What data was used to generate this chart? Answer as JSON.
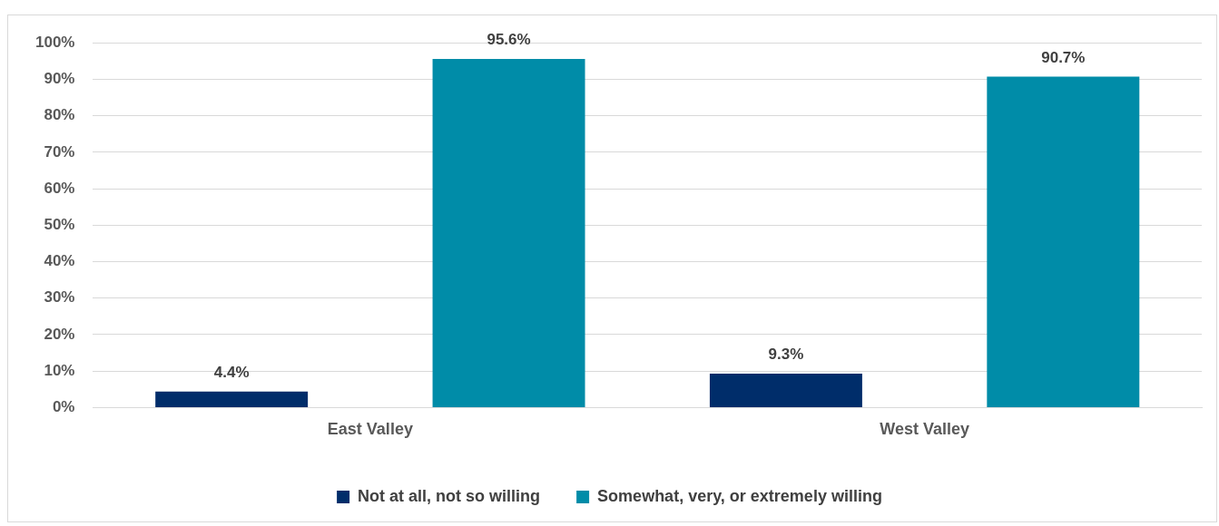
{
  "chart_data": {
    "type": "bar",
    "categories": [
      "East Valley",
      "West Valley"
    ],
    "series": [
      {
        "name": "Not at all, not so willing",
        "color": "#002d6a",
        "values": [
          4.4,
          9.3
        ],
        "value_labels": [
          "4.4%",
          "9.3%"
        ]
      },
      {
        "name": "Somewhat, very, or extremely willing",
        "color": "#008ca8",
        "values": [
          95.6,
          90.7
        ],
        "value_labels": [
          "95.6%",
          "90.7%"
        ]
      }
    ],
    "ylim": [
      0,
      100
    ],
    "yticks": [
      {
        "value": 0,
        "label": "0%"
      },
      {
        "value": 10,
        "label": "10%"
      },
      {
        "value": 20,
        "label": "20%"
      },
      {
        "value": 30,
        "label": "30%"
      },
      {
        "value": 40,
        "label": "40%"
      },
      {
        "value": 50,
        "label": "50%"
      },
      {
        "value": 60,
        "label": "60%"
      },
      {
        "value": 70,
        "label": "70%"
      },
      {
        "value": 80,
        "label": "80%"
      },
      {
        "value": 90,
        "label": "90%"
      },
      {
        "value": 100,
        "label": "100%"
      }
    ],
    "grid": "y",
    "legend": "bottom"
  }
}
